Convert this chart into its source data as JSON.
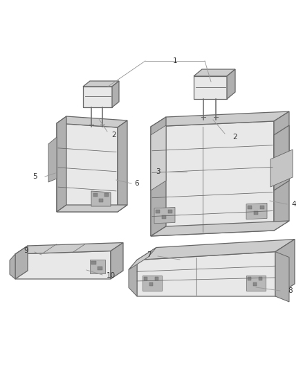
{
  "background_color": "#ffffff",
  "line_color": "#666666",
  "fill_color": "#e8e8e8",
  "side_color": "#cccccc",
  "dark_color": "#b0b0b0",
  "label_color": "#333333",
  "figsize": [
    4.38,
    5.33
  ],
  "dpi": 100,
  "font_size": 7.5
}
